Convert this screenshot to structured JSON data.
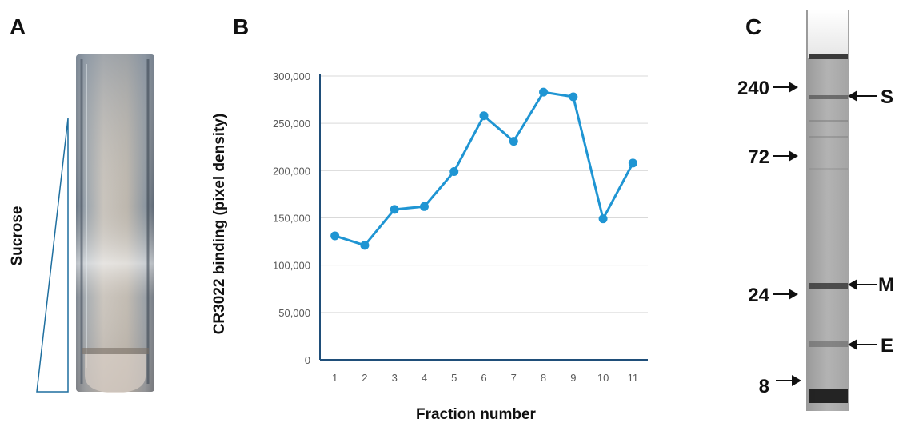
{
  "panels": {
    "a": "A",
    "b": "B",
    "c": "C"
  },
  "panel_a": {
    "gradient_label": "Sucrose"
  },
  "panel_c": {
    "markers": [
      "240",
      "72",
      "24",
      "8"
    ],
    "bands": [
      "S",
      "M",
      "E"
    ]
  },
  "colors": {
    "line": "#1f95d3",
    "axis": "#1f4e79",
    "grid": "#d9d9d9",
    "tick_text": "#595959"
  },
  "chart_data": {
    "type": "line",
    "title": "",
    "xlabel": "Fraction number",
    "ylabel": "CR3022 binding (pixel density)",
    "categories": [
      "1",
      "2",
      "3",
      "4",
      "5",
      "6",
      "7",
      "8",
      "9",
      "10",
      "11"
    ],
    "series": [
      {
        "values": [
          131000,
          121000,
          159000,
          162000,
          199000,
          258000,
          231000,
          283000,
          278000,
          149000,
          208000
        ]
      }
    ],
    "ylim": [
      0,
      300000
    ],
    "yticks": [
      0,
      50000,
      100000,
      150000,
      200000,
      250000,
      300000
    ],
    "ytick_labels": [
      "0",
      "50,000",
      "100,000",
      "150,000",
      "200,000",
      "250,000",
      "300,000"
    ],
    "grid": true,
    "legend": "none"
  }
}
